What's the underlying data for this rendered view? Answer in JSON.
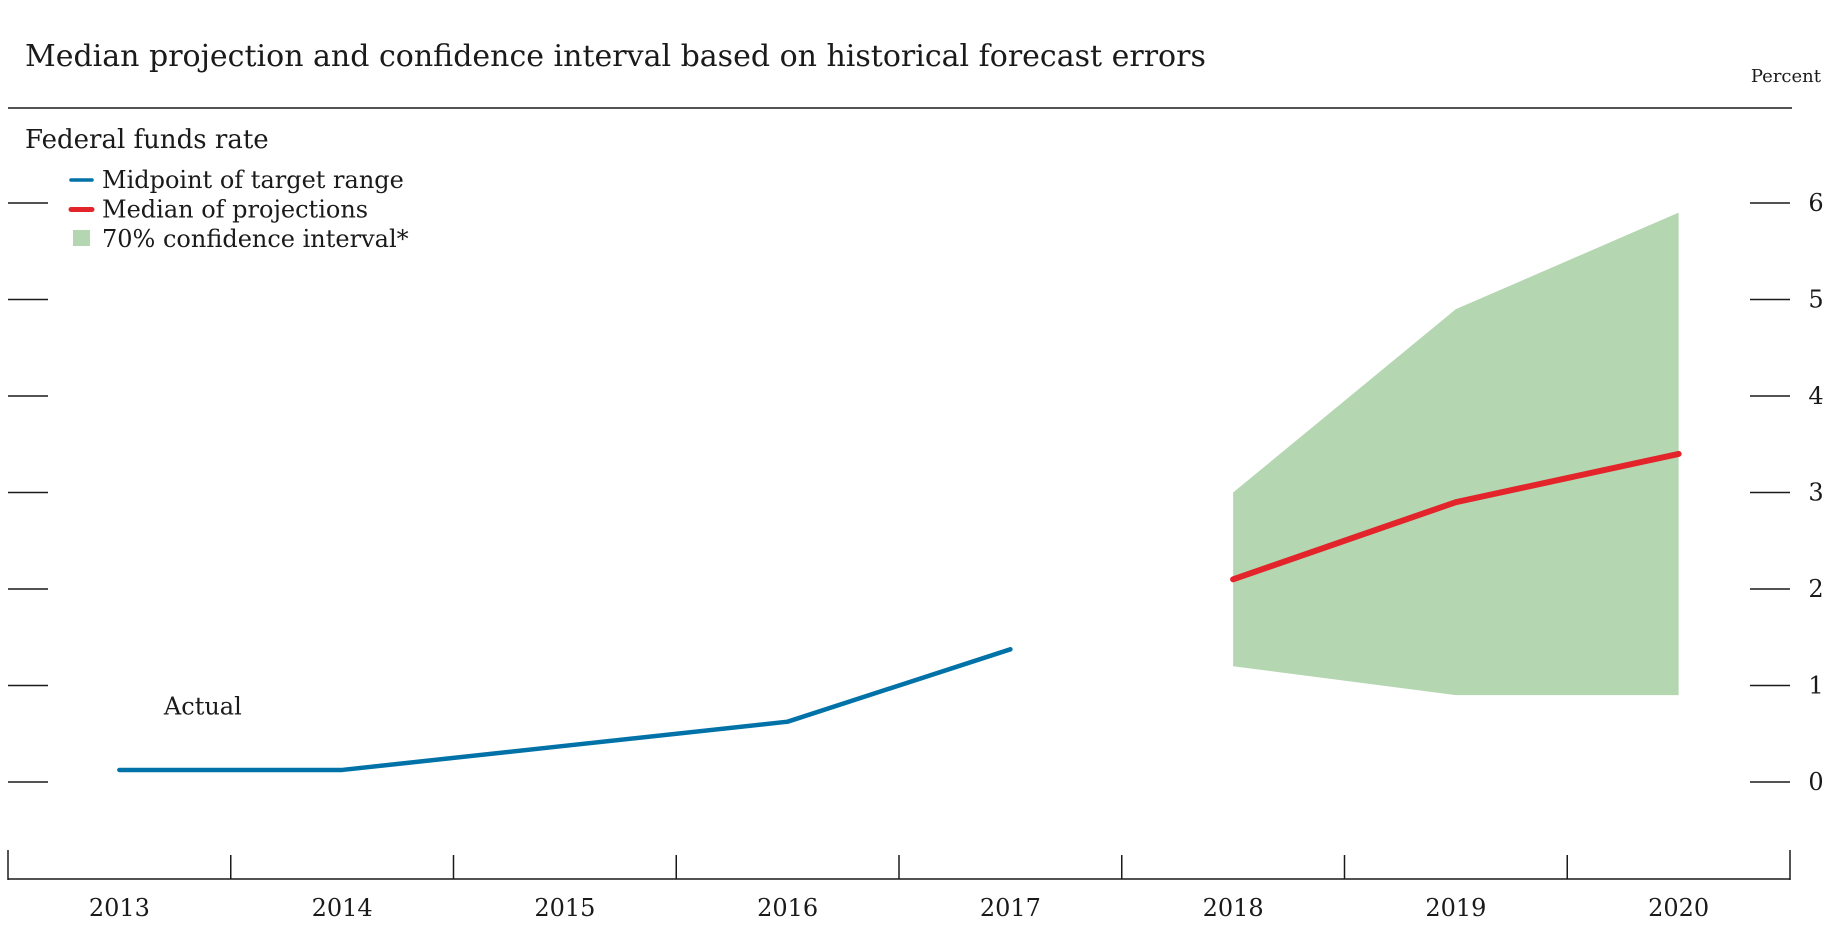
{
  "chart_data": {
    "type": "line",
    "title": "Median projection and confidence interval based on historical forecast errors",
    "subtitle": "Federal funds rate",
    "ylabel": "Percent",
    "xlabel": "",
    "x": [
      2013,
      2014,
      2015,
      2016,
      2017,
      2018,
      2019,
      2020
    ],
    "xlim": [
      2012.5,
      2020.5
    ],
    "ylim": [
      -0.7,
      7
    ],
    "yticks": [
      0,
      1,
      2,
      3,
      4,
      5,
      6
    ],
    "xtick_labels": [
      "2013",
      "2014",
      "2015",
      "2016",
      "2017",
      "2018",
      "2019",
      "2020"
    ],
    "series": [
      {
        "name": "Midpoint of target range",
        "color": "#0072a8",
        "x": [
          2013,
          2014,
          2015,
          2016,
          2017
        ],
        "values": [
          0.125,
          0.125,
          0.375,
          0.625,
          1.375
        ]
      },
      {
        "name": "Median of projections",
        "color": "#e3242b",
        "x": [
          2018,
          2019,
          2020
        ],
        "values": [
          2.1,
          2.9,
          3.4
        ]
      }
    ],
    "bands": [
      {
        "name": "70% confidence interval*",
        "color": "#b4d6b1",
        "x": [
          2018,
          2019,
          2020
        ],
        "lower": [
          1.2,
          0.9,
          0.9
        ],
        "upper": [
          3.0,
          4.9,
          5.9
        ]
      }
    ],
    "annotations": [
      {
        "text": "Actual",
        "x": 2013.2,
        "y": 0.7
      }
    ],
    "legend": "top-left",
    "grid": false
  }
}
